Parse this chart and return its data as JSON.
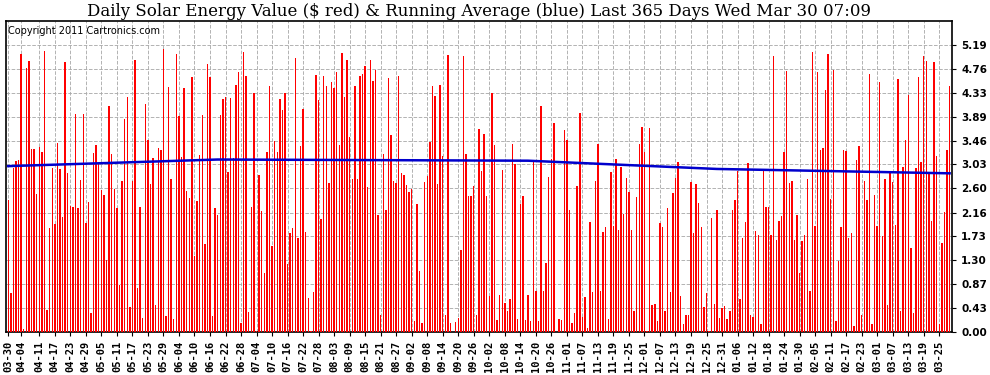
{
  "title": "Daily Solar Energy Value ($ red) & Running Average (blue) Last 365 Days Wed Mar 30 07:09",
  "copyright_text": "Copyright 2011 Cartronics.com",
  "bar_color": "#ff0000",
  "line_color": "#0000cc",
  "background_color": "#ffffff",
  "plot_bg_color": "#ffffff",
  "grid_color": "#aaaaaa",
  "ylim": [
    0.0,
    5.62
  ],
  "yticks": [
    0.0,
    0.43,
    0.87,
    1.3,
    1.73,
    2.16,
    2.6,
    3.03,
    3.46,
    3.89,
    4.33,
    4.76,
    5.19
  ],
  "num_bars": 365,
  "x_tick_labels": [
    "03-30",
    "04-04",
    "04-11",
    "04-17",
    "04-23",
    "04-29",
    "05-05",
    "05-11",
    "05-17",
    "05-23",
    "05-29",
    "06-04",
    "06-10",
    "06-16",
    "06-22",
    "06-28",
    "07-04",
    "07-10",
    "07-16",
    "07-22",
    "07-28",
    "08-03",
    "08-09",
    "08-15",
    "08-21",
    "08-27",
    "09-02",
    "09-08",
    "09-14",
    "09-20",
    "09-26",
    "10-02",
    "10-08",
    "10-14",
    "10-20",
    "10-26",
    "11-01",
    "11-07",
    "11-13",
    "11-19",
    "11-25",
    "12-01",
    "12-07",
    "12-13",
    "12-19",
    "12-25",
    "12-31",
    "01-06",
    "01-12",
    "01-18",
    "01-24",
    "01-30",
    "02-05",
    "02-11",
    "02-17",
    "02-23",
    "03-01",
    "03-07",
    "03-13",
    "03-19",
    "03-25"
  ],
  "x_tick_positions": [
    0,
    5,
    12,
    18,
    24,
    30,
    36,
    42,
    48,
    54,
    60,
    66,
    72,
    78,
    84,
    90,
    96,
    102,
    108,
    114,
    120,
    126,
    132,
    138,
    144,
    150,
    156,
    162,
    168,
    174,
    180,
    186,
    192,
    198,
    204,
    210,
    216,
    222,
    228,
    234,
    240,
    246,
    252,
    258,
    264,
    270,
    276,
    282,
    288,
    294,
    300,
    306,
    312,
    318,
    324,
    330,
    336,
    342,
    348,
    354,
    360
  ],
  "title_fontsize": 12,
  "tick_fontsize": 7.5,
  "copyright_fontsize": 7,
  "bar_width": 0.55
}
